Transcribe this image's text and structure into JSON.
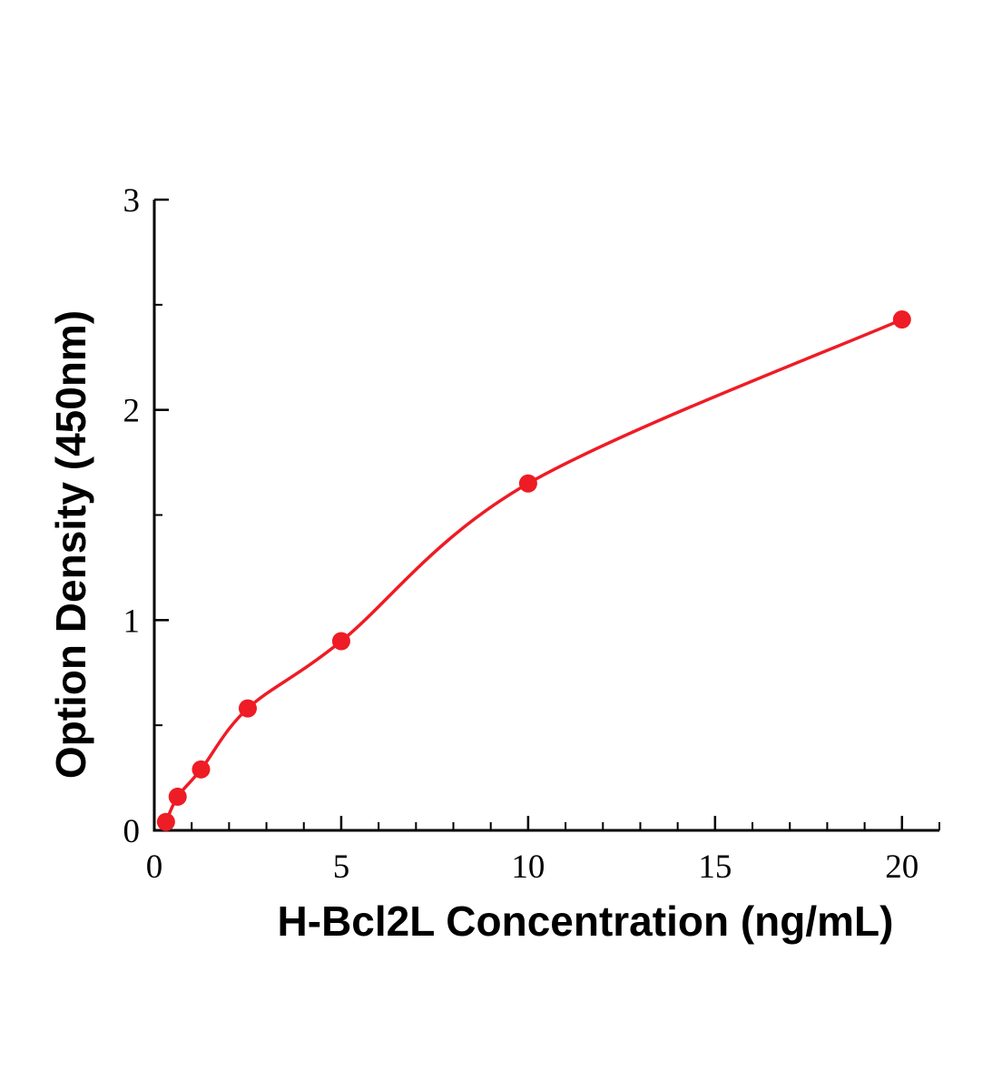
{
  "chart_data": {
    "type": "scatter",
    "title": "",
    "xlabel": "H-Bcl2L Concentration (ng/mL)",
    "ylabel": "Option Density (450nm)",
    "x": [
      0.3125,
      0.625,
      1.25,
      2.5,
      5,
      10,
      20
    ],
    "y": [
      0.04,
      0.16,
      0.29,
      0.58,
      0.9,
      1.65,
      2.43
    ],
    "fit_curve": "smooth saturating curve through all data points",
    "xlim": [
      0,
      21
    ],
    "ylim": [
      0,
      3
    ],
    "x_major_ticks": [
      0,
      5,
      10,
      15,
      20
    ],
    "x_minor_step": 1,
    "y_major_ticks": [
      0,
      1,
      2,
      3
    ],
    "y_minor_step": 0.5,
    "grid": false,
    "legend": null,
    "point_color": "#ee1c25",
    "line_color": "#ee1c25",
    "axis_color": "#000000"
  },
  "labels": {
    "x_axis": "H-Bcl2L Concentration (ng/mL)",
    "y_axis": "Option Density (450nm)"
  }
}
